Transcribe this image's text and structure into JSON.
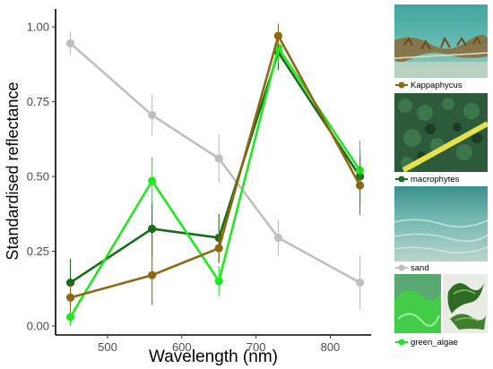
{
  "chart_data": {
    "type": "line",
    "xlabel": "Wavelength (nm)",
    "ylabel": "Standardised reflectance",
    "xlim": [
      430,
      855
    ],
    "ylim": [
      -0.03,
      1.06
    ],
    "xticks": [
      500,
      600,
      700,
      800
    ],
    "yticks": [
      0.0,
      0.25,
      0.5,
      0.75,
      1.0
    ],
    "ytick_labels": [
      "0.00",
      "0.25",
      "0.50",
      "0.75",
      "1.00"
    ],
    "grid": false,
    "legend_position": "right",
    "x": [
      450,
      560,
      650,
      730,
      840
    ],
    "series": [
      {
        "name": "sand",
        "color": "#bfbfbf",
        "values": [
          0.945,
          0.705,
          0.56,
          0.295,
          0.145
        ],
        "err": [
          0.04,
          0.07,
          0.08,
          0.06,
          0.09
        ]
      },
      {
        "name": "macrophytes",
        "color": "#1a6b1a",
        "values": [
          0.145,
          0.325,
          0.295,
          0.915,
          0.5
        ],
        "err": [
          0.08,
          0.09,
          0.08,
          0.06,
          0.09
        ]
      },
      {
        "name": "green_algae",
        "color": "#22e622",
        "values": [
          0.03,
          0.485,
          0.15,
          0.93,
          0.52
        ],
        "err": [
          0.03,
          0.08,
          0.05,
          0.05,
          0.1
        ]
      },
      {
        "name": "Kappaphycus",
        "color": "#8b6914",
        "values": [
          0.095,
          0.17,
          0.26,
          0.97,
          0.47
        ],
        "err": [
          0.05,
          0.1,
          0.05,
          0.04,
          0.1
        ]
      }
    ]
  },
  "legend": [
    {
      "name": "Kappaphycus",
      "color": "#8b6914",
      "photo": "kappaphycus-photo"
    },
    {
      "name": "macrophytes",
      "color": "#1a6b1a",
      "photo": "macrophytes-photo"
    },
    {
      "name": "sand",
      "color": "#bfbfbf",
      "photo": "sand-photo"
    },
    {
      "name": "green_algae",
      "color": "#22e622",
      "photo": "green-algae-photo"
    }
  ]
}
